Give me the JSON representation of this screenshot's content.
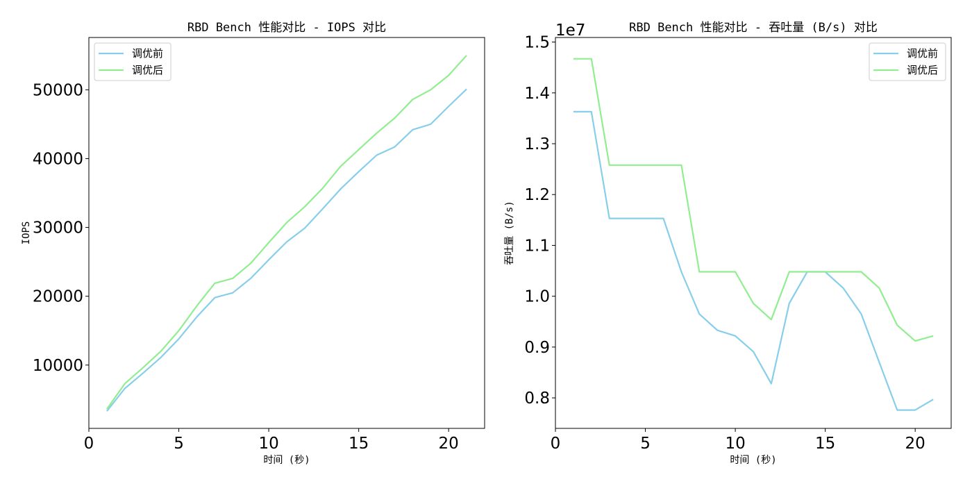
{
  "chart_data": [
    {
      "type": "line",
      "title": "RBD Bench 性能对比 - IOPS 对比",
      "xlabel": "时间 (秒)",
      "ylabel": "IOPS",
      "xlim": [
        0,
        22
      ],
      "ylim": [
        800,
        57600
      ],
      "xticks": [
        0,
        5,
        10,
        15,
        20
      ],
      "yticks": [
        10000,
        20000,
        30000,
        40000,
        50000
      ],
      "legend_position": "upper left",
      "grid": false,
      "x": [
        1,
        2,
        3,
        4,
        5,
        6,
        7,
        8,
        9,
        10,
        11,
        12,
        13,
        14,
        15,
        16,
        17,
        18,
        19,
        20,
        21
      ],
      "series": [
        {
          "name": "调优前",
          "color": "#87ceeb",
          "values": [
            3300,
            6600,
            8800,
            11100,
            13800,
            17000,
            19800,
            20500,
            22600,
            25300,
            27900,
            29900,
            32700,
            35600,
            38100,
            40500,
            41700,
            44200,
            45000,
            47600,
            50100
          ]
        },
        {
          "name": "调优后",
          "color": "#90ee90",
          "values": [
            3600,
            7300,
            9600,
            12000,
            15000,
            18600,
            21900,
            22600,
            24800,
            27800,
            30700,
            33000,
            35700,
            38900,
            41300,
            43700,
            45900,
            48600,
            50000,
            52100,
            55000
          ]
        }
      ]
    },
    {
      "type": "line",
      "title": "RBD Bench 性能对比 - 吞吐量 (B/s) 对比",
      "xlabel": "时间 (秒)",
      "ylabel": "吞吐量 (B/s)",
      "offset_label": "1e7",
      "xlim": [
        0,
        22
      ],
      "ylim": [
        0.74,
        1.509
      ],
      "xticks": [
        0,
        5,
        10,
        15,
        20
      ],
      "yticks": [
        0.8,
        0.9,
        1.0,
        1.1,
        1.2,
        1.3,
        1.4,
        1.5
      ],
      "ytick_labels": [
        "0.8",
        "0.9",
        "1.0",
        "1.1",
        "1.2",
        "1.3",
        "1.4",
        "1.5"
      ],
      "legend_position": "upper right",
      "grid": false,
      "x": [
        1,
        2,
        3,
        4,
        5,
        6,
        7,
        8,
        9,
        10,
        11,
        12,
        13,
        14,
        15,
        16,
        17,
        18,
        19,
        20,
        21
      ],
      "series": [
        {
          "name": "调优前",
          "color": "#87ceeb",
          "values": [
            1.363,
            1.363,
            1.153,
            1.153,
            1.153,
            1.153,
            1.048,
            0.965,
            0.933,
            0.922,
            0.891,
            0.828,
            0.986,
            1.048,
            1.048,
            1.016,
            0.965,
            0.87,
            0.776,
            0.776,
            0.797
          ]
        },
        {
          "name": "调优后",
          "color": "#90ee90",
          "values": [
            1.467,
            1.467,
            1.258,
            1.258,
            1.258,
            1.258,
            1.258,
            1.048,
            1.048,
            1.048,
            0.986,
            0.954,
            1.048,
            1.048,
            1.048,
            1.048,
            1.048,
            1.016,
            0.943,
            0.912,
            0.922
          ]
        }
      ]
    }
  ]
}
